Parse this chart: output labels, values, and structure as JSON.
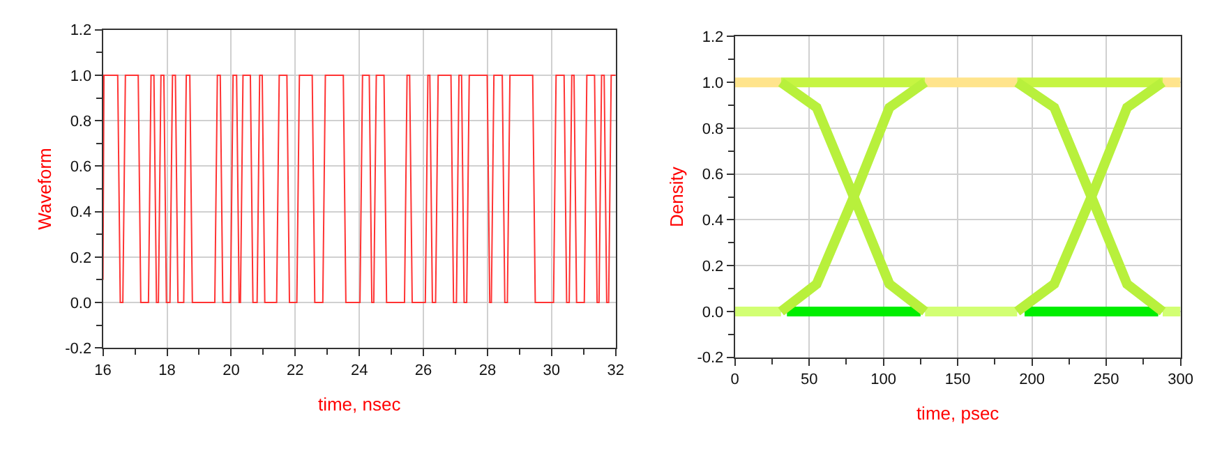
{
  "chart_data": [
    {
      "type": "line",
      "xlabel": "time, nsec",
      "ylabel": "Waveform",
      "grid": true,
      "xlim": [
        16,
        32
      ],
      "xticks": [
        16,
        {
          "value": 17,
          "label": null
        },
        18,
        {
          "value": 19,
          "label": null
        },
        20,
        {
          "value": 21,
          "label": null
        },
        22,
        {
          "value": 23,
          "label": null
        },
        24,
        {
          "value": 25,
          "label": null
        },
        26,
        {
          "value": 27,
          "label": null
        },
        28,
        {
          "value": 29,
          "label": null
        },
        30,
        {
          "value": 31,
          "label": null
        },
        32
      ],
      "ylim": [
        -0.2,
        1.2
      ],
      "yticks": [
        {
          "value": -0.2,
          "label": "-0.2"
        },
        {
          "value": -0.1,
          "label": null
        },
        {
          "value": 0,
          "label": "0.0"
        },
        {
          "value": 0.1,
          "label": null
        },
        {
          "value": 0.2,
          "label": "0.2"
        },
        {
          "value": 0.3,
          "label": null
        },
        {
          "value": 0.4,
          "label": "0.4"
        },
        {
          "value": 0.5,
          "label": null
        },
        {
          "value": 0.6,
          "label": "0.6"
        },
        {
          "value": 0.7,
          "label": null
        },
        {
          "value": 0.8,
          "label": "0.8"
        },
        {
          "value": 0.9,
          "label": null
        },
        {
          "value": 1.0,
          "label": "1.0"
        },
        {
          "value": 1.1,
          "label": null
        },
        {
          "value": 1.2,
          "label": "1.2"
        }
      ],
      "series": [
        {
          "color": "#ff3333",
          "x": [
            16,
            16.03,
            16.46,
            16.54,
            16.62,
            16.7,
            17.1,
            17.18,
            17.42,
            17.5,
            17.59,
            17.67,
            17.73,
            17.81,
            17.9,
            17.98,
            18.09,
            18.17,
            18.26,
            18.34,
            18.52,
            18.6,
            18.71,
            18.79,
            19.49,
            19.57,
            19.66,
            19.74,
            19.98,
            20.06,
            20.17,
            20.25,
            20.29,
            20.37,
            20.6,
            20.68,
            20.81,
            20.89,
            20.97,
            21.05,
            21.42,
            21.5,
            21.74,
            21.82,
            22.05,
            22.13,
            22.53,
            22.61,
            22.86,
            22.94,
            23.5,
            23.58,
            24.02,
            24.1,
            24.31,
            24.39,
            24.45,
            24.53,
            24.77,
            24.85,
            25.41,
            25.49,
            25.57,
            25.65,
            26.06,
            26.14,
            26.2,
            26.28,
            26.38,
            26.46,
            26.86,
            26.94,
            27.03,
            27.11,
            27.19,
            27.27,
            27.35,
            27.43,
            27.99,
            28.07,
            28.12,
            28.2,
            28.46,
            28.54,
            28.62,
            28.7,
            29.41,
            29.49,
            30.06,
            30.14,
            30.39,
            30.47,
            30.55,
            30.63,
            30.7,
            30.78,
            31.02,
            31.1,
            31.34,
            31.42,
            31.48,
            31.56,
            31.64,
            31.72,
            31.78,
            31.86,
            31.96,
            32
          ],
          "values": [
            0.1,
            1,
            1,
            0,
            0,
            1,
            1,
            0,
            0,
            1,
            1,
            0,
            0,
            1,
            1,
            0,
            0,
            1,
            1,
            0,
            0,
            1,
            1,
            0,
            0,
            1,
            1,
            0,
            0,
            1,
            1,
            0,
            0,
            1,
            1,
            0,
            0,
            1,
            1,
            0,
            0,
            1,
            1,
            0,
            0,
            1,
            1,
            0,
            0,
            1,
            1,
            0,
            0,
            1,
            1,
            0,
            0,
            1,
            1,
            0,
            0,
            1,
            1,
            0,
            0,
            1,
            1,
            0,
            0,
            1,
            1,
            0,
            0,
            1,
            1,
            0,
            0,
            1,
            1,
            0,
            0,
            1,
            1,
            0,
            0,
            1,
            1,
            0,
            0,
            1,
            1,
            0,
            0,
            1,
            1,
            0,
            0,
            1,
            1,
            0,
            0,
            1,
            1,
            0,
            0,
            1,
            1,
            1
          ]
        }
      ]
    },
    {
      "type": "line",
      "xlabel": "time, psec",
      "ylabel": "Density",
      "grid": true,
      "xlim": [
        0,
        300
      ],
      "xticks": [
        0,
        {
          "value": 25,
          "label": null
        },
        50,
        {
          "value": 75,
          "label": null
        },
        100,
        {
          "value": 125,
          "label": null
        },
        150,
        {
          "value": 175,
          "label": null
        },
        200,
        {
          "value": 225,
          "label": null
        },
        250,
        {
          "value": 275,
          "label": null
        },
        300
      ],
      "ylim": [
        -0.2,
        1.2
      ],
      "yticks": [
        {
          "value": -0.2,
          "label": "-0.2"
        },
        {
          "value": -0.1,
          "label": null
        },
        {
          "value": 0,
          "label": "0.0"
        },
        {
          "value": 0.1,
          "label": null
        },
        {
          "value": 0.2,
          "label": "0.2"
        },
        {
          "value": 0.3,
          "label": null
        },
        {
          "value": 0.4,
          "label": "0.4"
        },
        {
          "value": 0.5,
          "label": null
        },
        {
          "value": 0.6,
          "label": "0.6"
        },
        {
          "value": 0.7,
          "label": null
        },
        {
          "value": 0.8,
          "label": "0.8"
        },
        {
          "value": 0.9,
          "label": null
        },
        {
          "value": 1.0,
          "label": "1.0"
        },
        {
          "value": 1.1,
          "label": null
        },
        {
          "value": 1.2,
          "label": "1.2"
        }
      ],
      "series": [
        {
          "color": "#ffe48c",
          "x": [
            0,
            31,
            null,
            128,
            190,
            null,
            288,
            300
          ],
          "values": [
            1,
            1,
            null,
            1,
            1,
            null,
            1,
            1
          ]
        },
        {
          "color": "#d2ff73",
          "x": [
            0,
            31,
            null,
            128,
            190,
            null,
            288,
            300
          ],
          "values": [
            0,
            0,
            null,
            0,
            0,
            null,
            0,
            0
          ]
        },
        {
          "color": "#c6f542",
          "x": [
            31,
            128,
            null,
            190,
            288
          ],
          "values": [
            1,
            1,
            null,
            1,
            1
          ]
        },
        {
          "color": "#00ee00",
          "x": [
            35,
            125,
            null,
            195,
            285
          ],
          "values": [
            0,
            0,
            null,
            0,
            0
          ]
        },
        {
          "color": "#b8f03c",
          "x": [
            31,
            55,
            80,
            104,
            128,
            null,
            190,
            215,
            240,
            264,
            288
          ],
          "values": [
            1,
            0.89,
            0.5,
            0.12,
            0,
            null,
            1,
            0.89,
            0.5,
            0.12,
            0
          ]
        },
        {
          "color": "#b8f03c",
          "x": [
            31,
            55,
            80,
            104,
            128,
            null,
            190,
            215,
            240,
            264,
            288
          ],
          "values": [
            0,
            0.12,
            0.5,
            0.89,
            1,
            null,
            0,
            0.12,
            0.5,
            0.89,
            1
          ]
        }
      ]
    }
  ]
}
